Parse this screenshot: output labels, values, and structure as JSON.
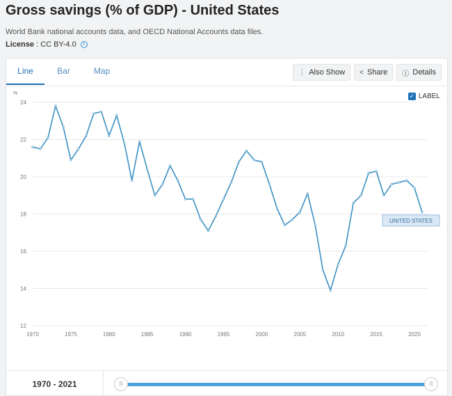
{
  "page": {
    "title": "Gross savings (% of GDP) - United States",
    "source": "World Bank national accounts data, and OECD National Accounts data files.",
    "license_label": "License",
    "license_sep": " : ",
    "license_value": "CC BY-4.0"
  },
  "tabs": [
    {
      "label": "Line",
      "active": true
    },
    {
      "label": "Bar",
      "active": false
    },
    {
      "label": "Map",
      "active": false
    }
  ],
  "buttons": {
    "also_show": "Also Show",
    "share": "Share",
    "details": "Details"
  },
  "label_toggle": {
    "label": "LABEL",
    "checked": true
  },
  "footer": {
    "range": "1970 - 2021"
  },
  "colors": {
    "line": "#3a8fc2",
    "accent": "#1d6fb8",
    "grid": "#e8e8e8"
  },
  "chart_data": {
    "type": "line",
    "ylabel": "%",
    "ylim": [
      12,
      24
    ],
    "xlim": [
      1970,
      2021
    ],
    "yticks": [
      12,
      14,
      16,
      18,
      20,
      22,
      24
    ],
    "xticks": [
      1970,
      1975,
      1980,
      1985,
      1990,
      1995,
      2000,
      2005,
      2010,
      2015,
      2020
    ],
    "grid": "horizontal",
    "series": [
      {
        "name": "UNITED STATES",
        "x": [
          1970,
          1971,
          1972,
          1973,
          1974,
          1975,
          1976,
          1977,
          1978,
          1979,
          1980,
          1981,
          1982,
          1983,
          1984,
          1985,
          1986,
          1987,
          1988,
          1989,
          1990,
          1991,
          1992,
          1993,
          1994,
          1995,
          1996,
          1997,
          1998,
          1999,
          2000,
          2001,
          2002,
          2003,
          2004,
          2005,
          2006,
          2007,
          2008,
          2009,
          2010,
          2011,
          2012,
          2013,
          2014,
          2015,
          2016,
          2017,
          2018,
          2019,
          2020,
          2021
        ],
        "values": [
          21.6,
          21.5,
          22.1,
          23.8,
          22.7,
          20.9,
          21.5,
          22.2,
          23.4,
          23.5,
          22.2,
          23.3,
          21.8,
          19.8,
          21.9,
          20.4,
          19.0,
          19.6,
          20.6,
          19.8,
          18.8,
          18.8,
          17.7,
          17.1,
          17.9,
          18.8,
          19.7,
          20.8,
          21.4,
          20.9,
          20.8,
          19.6,
          18.3,
          17.4,
          17.7,
          18.1,
          19.1,
          17.4,
          15.0,
          13.9,
          15.3,
          16.3,
          18.6,
          19.0,
          20.2,
          20.3,
          19.0,
          19.6,
          19.7,
          19.8,
          19.4,
          18.1
        ]
      }
    ]
  }
}
